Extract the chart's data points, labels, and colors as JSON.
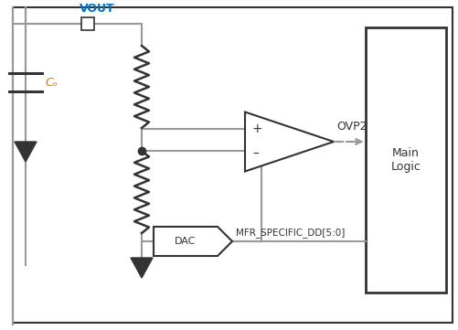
{
  "bg_color": "#ffffff",
  "line_color": "#999999",
  "dark_line_color": "#333333",
  "blue_color": "#0070c0",
  "orange_color": "#e07000",
  "vout_label": "VOUT",
  "co_label": "Cₒ",
  "ovp2_label": "OVP2",
  "dac_label": "DAC",
  "mfr_label": "MFR_SPECIFIC_DD[5:0]",
  "main_logic_label": "Main\nLogic",
  "plus_label": "+",
  "minus_label": "–"
}
